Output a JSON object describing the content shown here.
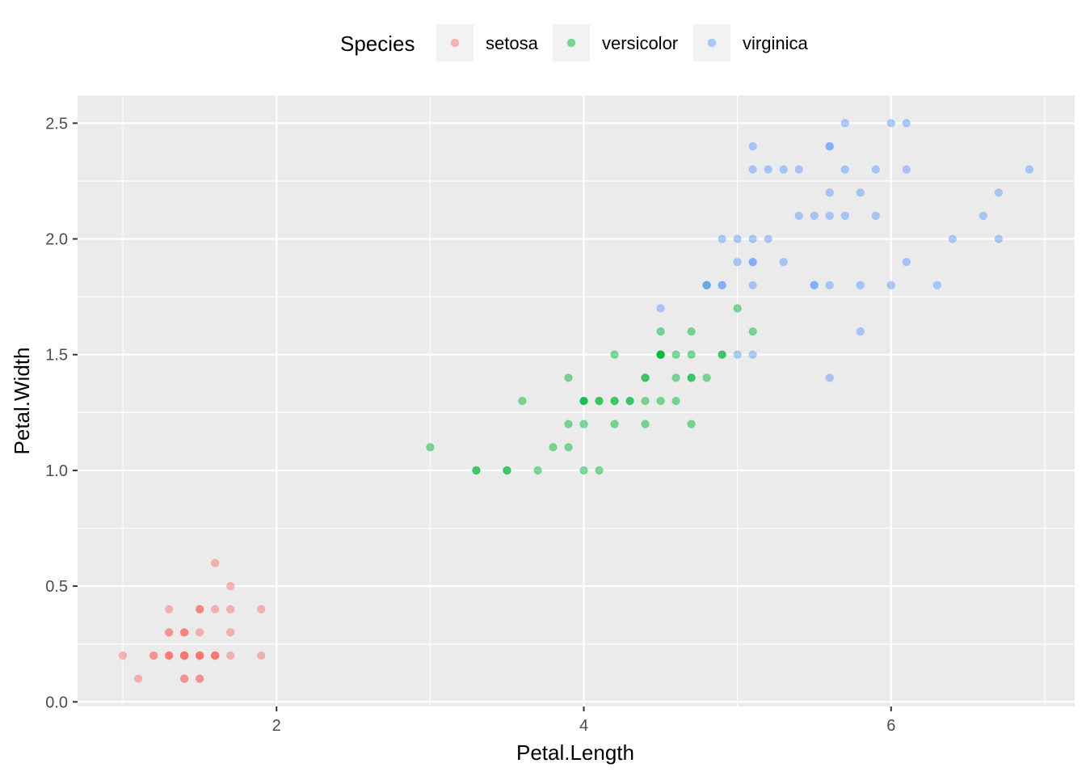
{
  "chart_data": {
    "type": "scatter",
    "xlabel": "Petal.Length",
    "ylabel": "Petal.Width",
    "xlim": [
      0.705,
      7.195
    ],
    "ylim": [
      -0.02,
      2.62
    ],
    "x_ticks": [
      2,
      4,
      6
    ],
    "x_tick_labels": [
      "2",
      "4",
      "6"
    ],
    "y_ticks": [
      0.0,
      0.5,
      1.0,
      1.5,
      2.0,
      2.5
    ],
    "y_tick_labels": [
      "0.0",
      "0.5",
      "1.0",
      "1.5",
      "2.0",
      "2.5"
    ],
    "grid": true,
    "legend_position": "top",
    "legend_title": "Species",
    "point_alpha": 0.5,
    "series": [
      {
        "name": "setosa",
        "color": "#F8766D",
        "points": [
          [
            1.4,
            0.2
          ],
          [
            1.4,
            0.2
          ],
          [
            1.3,
            0.2
          ],
          [
            1.5,
            0.2
          ],
          [
            1.4,
            0.2
          ],
          [
            1.7,
            0.4
          ],
          [
            1.4,
            0.3
          ],
          [
            1.5,
            0.2
          ],
          [
            1.4,
            0.2
          ],
          [
            1.5,
            0.1
          ],
          [
            1.5,
            0.2
          ],
          [
            1.6,
            0.2
          ],
          [
            1.4,
            0.1
          ],
          [
            1.1,
            0.1
          ],
          [
            1.2,
            0.2
          ],
          [
            1.5,
            0.4
          ],
          [
            1.3,
            0.4
          ],
          [
            1.4,
            0.3
          ],
          [
            1.7,
            0.3
          ],
          [
            1.5,
            0.3
          ],
          [
            1.7,
            0.2
          ],
          [
            1.5,
            0.4
          ],
          [
            1.0,
            0.2
          ],
          [
            1.7,
            0.5
          ],
          [
            1.9,
            0.2
          ],
          [
            1.6,
            0.2
          ],
          [
            1.6,
            0.4
          ],
          [
            1.5,
            0.2
          ],
          [
            1.4,
            0.2
          ],
          [
            1.6,
            0.2
          ],
          [
            1.6,
            0.2
          ],
          [
            1.5,
            0.4
          ],
          [
            1.5,
            0.1
          ],
          [
            1.4,
            0.2
          ],
          [
            1.5,
            0.2
          ],
          [
            1.2,
            0.2
          ],
          [
            1.3,
            0.2
          ],
          [
            1.4,
            0.1
          ],
          [
            1.3,
            0.2
          ],
          [
            1.5,
            0.2
          ],
          [
            1.3,
            0.3
          ],
          [
            1.3,
            0.3
          ],
          [
            1.3,
            0.2
          ],
          [
            1.6,
            0.6
          ],
          [
            1.9,
            0.4
          ],
          [
            1.4,
            0.3
          ],
          [
            1.6,
            0.2
          ],
          [
            1.4,
            0.2
          ],
          [
            1.5,
            0.2
          ],
          [
            1.4,
            0.2
          ]
        ]
      },
      {
        "name": "versicolor",
        "color": "#00BA38",
        "points": [
          [
            4.7,
            1.4
          ],
          [
            4.5,
            1.5
          ],
          [
            4.9,
            1.5
          ],
          [
            4.0,
            1.3
          ],
          [
            4.6,
            1.5
          ],
          [
            4.5,
            1.3
          ],
          [
            4.7,
            1.6
          ],
          [
            3.3,
            1.0
          ],
          [
            4.6,
            1.3
          ],
          [
            3.9,
            1.4
          ],
          [
            3.5,
            1.0
          ],
          [
            4.2,
            1.5
          ],
          [
            4.0,
            1.0
          ],
          [
            4.7,
            1.4
          ],
          [
            3.6,
            1.3
          ],
          [
            4.4,
            1.4
          ],
          [
            4.5,
            1.5
          ],
          [
            4.1,
            1.0
          ],
          [
            4.5,
            1.5
          ],
          [
            3.9,
            1.1
          ],
          [
            4.8,
            1.8
          ],
          [
            4.0,
            1.3
          ],
          [
            4.9,
            1.5
          ],
          [
            4.7,
            1.2
          ],
          [
            4.3,
            1.3
          ],
          [
            4.4,
            1.4
          ],
          [
            4.8,
            1.4
          ],
          [
            5.0,
            1.7
          ],
          [
            4.5,
            1.5
          ],
          [
            3.5,
            1.0
          ],
          [
            3.8,
            1.1
          ],
          [
            3.7,
            1.0
          ],
          [
            3.9,
            1.2
          ],
          [
            5.1,
            1.6
          ],
          [
            4.5,
            1.5
          ],
          [
            4.5,
            1.6
          ],
          [
            4.7,
            1.5
          ],
          [
            4.4,
            1.3
          ],
          [
            4.1,
            1.3
          ],
          [
            4.0,
            1.3
          ],
          [
            4.4,
            1.2
          ],
          [
            4.6,
            1.4
          ],
          [
            4.0,
            1.2
          ],
          [
            3.3,
            1.0
          ],
          [
            4.2,
            1.3
          ],
          [
            4.2,
            1.2
          ],
          [
            4.2,
            1.3
          ],
          [
            4.3,
            1.3
          ],
          [
            3.0,
            1.1
          ],
          [
            4.1,
            1.3
          ]
        ]
      },
      {
        "name": "virginica",
        "color": "#619CFF",
        "points": [
          [
            6.0,
            2.5
          ],
          [
            5.1,
            1.9
          ],
          [
            5.9,
            2.1
          ],
          [
            5.6,
            1.8
          ],
          [
            5.8,
            2.2
          ],
          [
            6.6,
            2.1
          ],
          [
            4.5,
            1.7
          ],
          [
            6.3,
            1.8
          ],
          [
            5.8,
            1.8
          ],
          [
            6.1,
            2.5
          ],
          [
            5.1,
            2.0
          ],
          [
            5.3,
            1.9
          ],
          [
            5.5,
            2.1
          ],
          [
            5.0,
            2.0
          ],
          [
            5.1,
            2.4
          ],
          [
            5.3,
            2.3
          ],
          [
            5.5,
            1.8
          ],
          [
            6.7,
            2.2
          ],
          [
            6.9,
            2.3
          ],
          [
            5.0,
            1.5
          ],
          [
            5.7,
            2.3
          ],
          [
            4.9,
            2.0
          ],
          [
            6.7,
            2.0
          ],
          [
            4.9,
            1.8
          ],
          [
            5.7,
            2.1
          ],
          [
            6.0,
            1.8
          ],
          [
            4.8,
            1.8
          ],
          [
            4.9,
            1.8
          ],
          [
            5.6,
            2.1
          ],
          [
            5.8,
            1.6
          ],
          [
            6.1,
            1.9
          ],
          [
            6.4,
            2.0
          ],
          [
            5.6,
            2.2
          ],
          [
            5.1,
            1.5
          ],
          [
            5.6,
            1.4
          ],
          [
            6.1,
            2.3
          ],
          [
            5.6,
            2.4
          ],
          [
            5.5,
            1.8
          ],
          [
            4.8,
            1.8
          ],
          [
            5.4,
            2.1
          ],
          [
            5.6,
            2.4
          ],
          [
            5.1,
            2.3
          ],
          [
            5.1,
            1.9
          ],
          [
            5.9,
            2.3
          ],
          [
            5.7,
            2.5
          ],
          [
            5.2,
            2.3
          ],
          [
            5.0,
            1.9
          ],
          [
            5.2,
            2.0
          ],
          [
            5.4,
            2.3
          ],
          [
            5.1,
            1.8
          ]
        ]
      }
    ]
  }
}
